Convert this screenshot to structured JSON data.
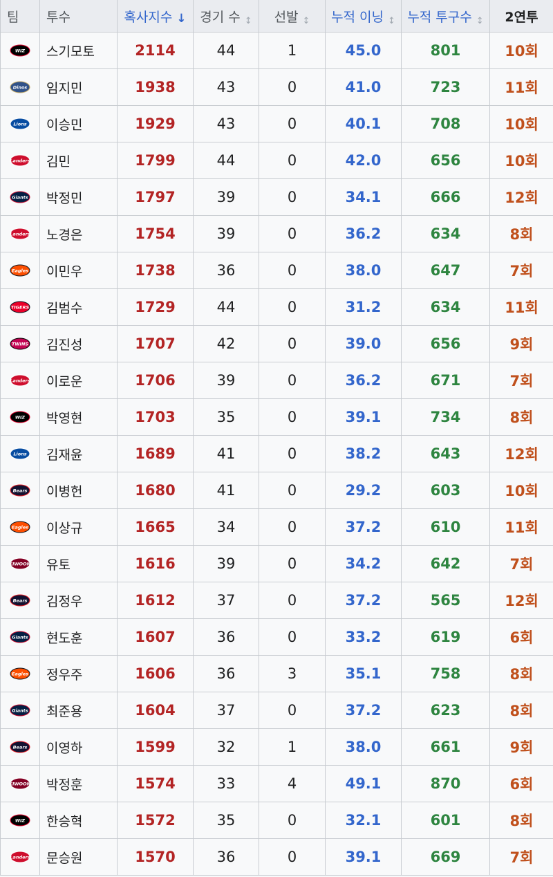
{
  "headers": {
    "team": "팀",
    "pitcher": "투수",
    "index": "혹사지수",
    "games": "경기 수",
    "starts": "선발",
    "innings": "누적 이닝",
    "pitches": "누적 투구수",
    "back_to_back": "2연투"
  },
  "sort_icons": {
    "active": "↓",
    "inactive": "↕"
  },
  "team_logos": {
    "wiz": {
      "text": "WIZ",
      "color": "#000000",
      "accent": "#e4002b"
    },
    "dinos": {
      "text": "Dinos",
      "color": "#315288",
      "accent": "#c6a964"
    },
    "lions": {
      "text": "Lions",
      "color": "#074ca1",
      "accent": "#ffffff"
    },
    "landers": {
      "text": "Landers",
      "color": "#ce0e2d",
      "accent": "#ffffff"
    },
    "giants": {
      "text": "Giants",
      "color": "#041e42",
      "accent": "#d00f31"
    },
    "eagles": {
      "text": "Eagles",
      "color": "#fc4e00",
      "accent": "#07111e"
    },
    "tigers": {
      "text": "TIGERS",
      "color": "#ea0029",
      "accent": "#06141f"
    },
    "twins": {
      "text": "TWINS",
      "color": "#c30452",
      "accent": "#000000"
    },
    "bears": {
      "text": "Bears",
      "color": "#131230",
      "accent": "#ed1c24"
    },
    "kiwoom": {
      "text": "KIWOOM",
      "color": "#820024",
      "accent": "#ffffff"
    }
  },
  "rows": [
    {
      "team": "wiz",
      "name": "스기모토",
      "index": "2114",
      "games": "44",
      "starts": "1",
      "innings": "45.0",
      "pitches": "801",
      "b2b": "10회"
    },
    {
      "team": "dinos",
      "name": "임지민",
      "index": "1938",
      "games": "43",
      "starts": "0",
      "innings": "41.0",
      "pitches": "723",
      "b2b": "11회"
    },
    {
      "team": "lions",
      "name": "이승민",
      "index": "1929",
      "games": "43",
      "starts": "0",
      "innings": "40.1",
      "pitches": "708",
      "b2b": "10회"
    },
    {
      "team": "landers",
      "name": "김민",
      "index": "1799",
      "games": "44",
      "starts": "0",
      "innings": "42.0",
      "pitches": "656",
      "b2b": "10회"
    },
    {
      "team": "giants",
      "name": "박정민",
      "index": "1797",
      "games": "39",
      "starts": "0",
      "innings": "34.1",
      "pitches": "666",
      "b2b": "12회"
    },
    {
      "team": "landers",
      "name": "노경은",
      "index": "1754",
      "games": "39",
      "starts": "0",
      "innings": "36.2",
      "pitches": "634",
      "b2b": "8회"
    },
    {
      "team": "eagles",
      "name": "이민우",
      "index": "1738",
      "games": "36",
      "starts": "0",
      "innings": "38.0",
      "pitches": "647",
      "b2b": "7회"
    },
    {
      "team": "tigers",
      "name": "김범수",
      "index": "1729",
      "games": "44",
      "starts": "0",
      "innings": "31.2",
      "pitches": "634",
      "b2b": "11회"
    },
    {
      "team": "twins",
      "name": "김진성",
      "index": "1707",
      "games": "42",
      "starts": "0",
      "innings": "39.0",
      "pitches": "656",
      "b2b": "9회"
    },
    {
      "team": "landers",
      "name": "이로운",
      "index": "1706",
      "games": "39",
      "starts": "0",
      "innings": "36.2",
      "pitches": "671",
      "b2b": "7회"
    },
    {
      "team": "wiz",
      "name": "박영현",
      "index": "1703",
      "games": "35",
      "starts": "0",
      "innings": "39.1",
      "pitches": "734",
      "b2b": "8회"
    },
    {
      "team": "lions",
      "name": "김재윤",
      "index": "1689",
      "games": "41",
      "starts": "0",
      "innings": "38.2",
      "pitches": "643",
      "b2b": "12회"
    },
    {
      "team": "bears",
      "name": "이병헌",
      "index": "1680",
      "games": "41",
      "starts": "0",
      "innings": "29.2",
      "pitches": "603",
      "b2b": "10회"
    },
    {
      "team": "eagles",
      "name": "이상규",
      "index": "1665",
      "games": "34",
      "starts": "0",
      "innings": "37.2",
      "pitches": "610",
      "b2b": "11회"
    },
    {
      "team": "kiwoom",
      "name": "유토",
      "index": "1616",
      "games": "39",
      "starts": "0",
      "innings": "34.2",
      "pitches": "642",
      "b2b": "7회"
    },
    {
      "team": "bears",
      "name": "김정우",
      "index": "1612",
      "games": "37",
      "starts": "0",
      "innings": "37.2",
      "pitches": "565",
      "b2b": "12회"
    },
    {
      "team": "giants",
      "name": "현도훈",
      "index": "1607",
      "games": "36",
      "starts": "0",
      "innings": "33.2",
      "pitches": "619",
      "b2b": "6회"
    },
    {
      "team": "eagles",
      "name": "정우주",
      "index": "1606",
      "games": "36",
      "starts": "3",
      "innings": "35.1",
      "pitches": "758",
      "b2b": "8회"
    },
    {
      "team": "giants",
      "name": "최준용",
      "index": "1604",
      "games": "37",
      "starts": "0",
      "innings": "37.2",
      "pitches": "623",
      "b2b": "8회"
    },
    {
      "team": "bears",
      "name": "이영하",
      "index": "1599",
      "games": "32",
      "starts": "1",
      "innings": "38.0",
      "pitches": "661",
      "b2b": "9회"
    },
    {
      "team": "kiwoom",
      "name": "박정훈",
      "index": "1574",
      "games": "33",
      "starts": "4",
      "innings": "49.1",
      "pitches": "870",
      "b2b": "6회"
    },
    {
      "team": "wiz",
      "name": "한승혁",
      "index": "1572",
      "games": "35",
      "starts": "0",
      "innings": "32.1",
      "pitches": "601",
      "b2b": "8회"
    },
    {
      "team": "landers",
      "name": "문승원",
      "index": "1570",
      "games": "36",
      "starts": "0",
      "innings": "39.1",
      "pitches": "669",
      "b2b": "7회"
    }
  ]
}
